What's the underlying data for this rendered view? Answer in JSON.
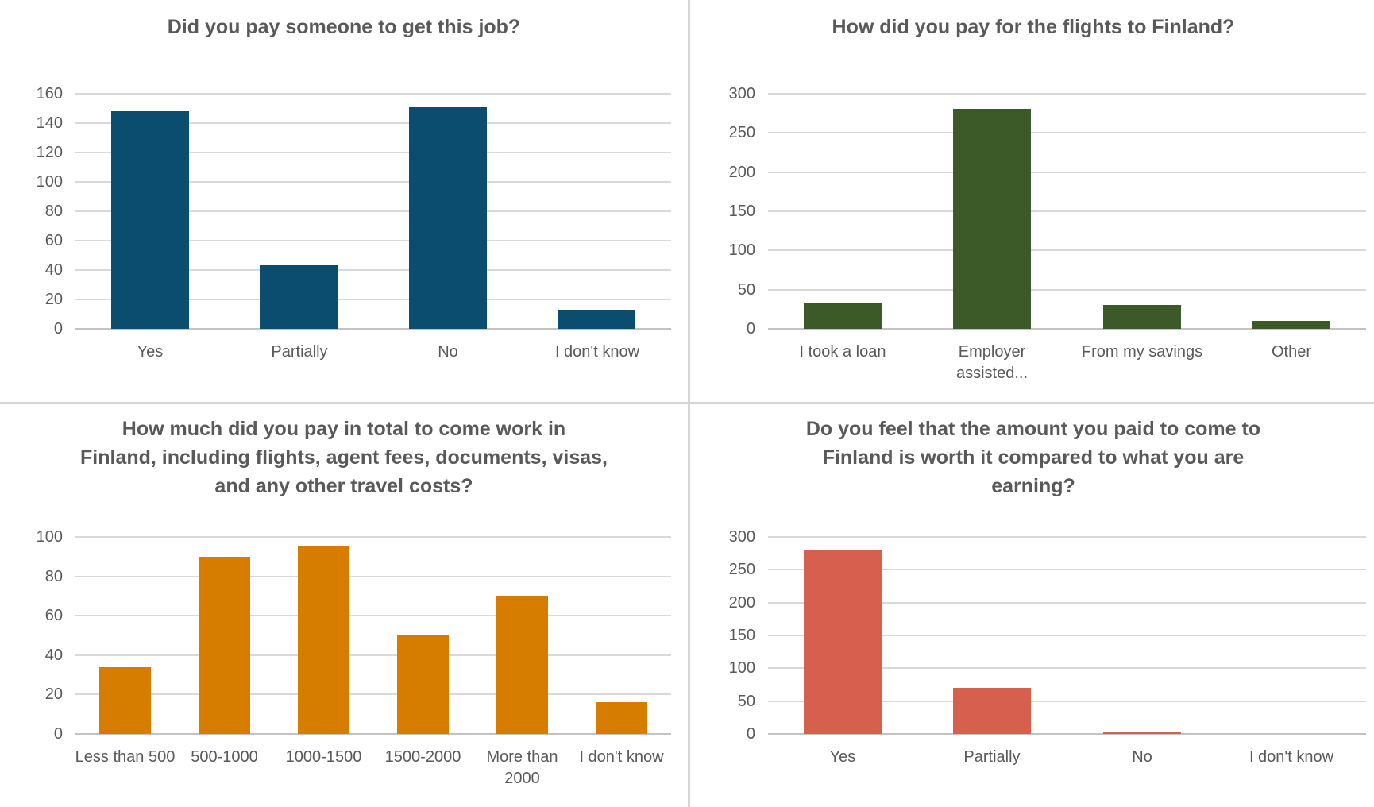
{
  "style": {
    "background": "#ffffff",
    "title_color": "#595959",
    "axis_label_color": "#595959",
    "gridline_color": "#d9d9d9",
    "axis_line_color": "#c3c3c3",
    "divider_color": "#d5d5d5"
  },
  "chart_data": [
    {
      "id": "pay-someone",
      "type": "bar",
      "title": "Did you pay someone to get this job?",
      "categories": [
        "Yes",
        "Partially",
        "No",
        "I don't know"
      ],
      "values": [
        148,
        43,
        151,
        13
      ],
      "xlabel": "",
      "ylabel": "",
      "ylim": [
        0,
        160
      ],
      "yticks": [
        0,
        20,
        40,
        60,
        80,
        100,
        120,
        140,
        160
      ],
      "grid": true,
      "legend": "none",
      "bar_color": "#0a4d6e"
    },
    {
      "id": "flights-payment",
      "type": "bar",
      "title": "How did you pay for the flights to Finland?",
      "categories": [
        "I took a loan",
        "Employer\nassisted...",
        "From my savings",
        "Other"
      ],
      "values": [
        32,
        281,
        30,
        10
      ],
      "xlabel": "",
      "ylabel": "",
      "ylim": [
        0,
        300
      ],
      "yticks": [
        0,
        50,
        100,
        150,
        200,
        250,
        300
      ],
      "grid": true,
      "legend": "none",
      "bar_color": "#3b5a28"
    },
    {
      "id": "total-paid",
      "type": "bar",
      "title": "How much did you pay in total to come work in\nFinland, including flights, agent fees, documents, visas,\nand any other travel costs?",
      "categories": [
        "Less than 500",
        "500-1000",
        "1000-1500",
        "1500-2000",
        "More than\n2000",
        "I don't know"
      ],
      "values": [
        34,
        90,
        95,
        50,
        70,
        16
      ],
      "xlabel": "",
      "ylabel": "",
      "ylim": [
        0,
        100
      ],
      "yticks": [
        0,
        20,
        40,
        60,
        80,
        100
      ],
      "grid": true,
      "legend": "none",
      "bar_color": "#d67d00"
    },
    {
      "id": "worth-it",
      "type": "bar",
      "title": "Do you feel that the amount you paid to come to\nFinland is worth it compared to what you are\nearning?",
      "categories": [
        "Yes",
        "Partially",
        "No",
        "I don't know"
      ],
      "values": [
        281,
        70,
        3,
        0
      ],
      "xlabel": "",
      "ylabel": "",
      "ylim": [
        0,
        300
      ],
      "yticks": [
        0,
        50,
        100,
        150,
        200,
        250,
        300
      ],
      "grid": true,
      "legend": "none",
      "bar_color": "#d75f4d"
    }
  ]
}
